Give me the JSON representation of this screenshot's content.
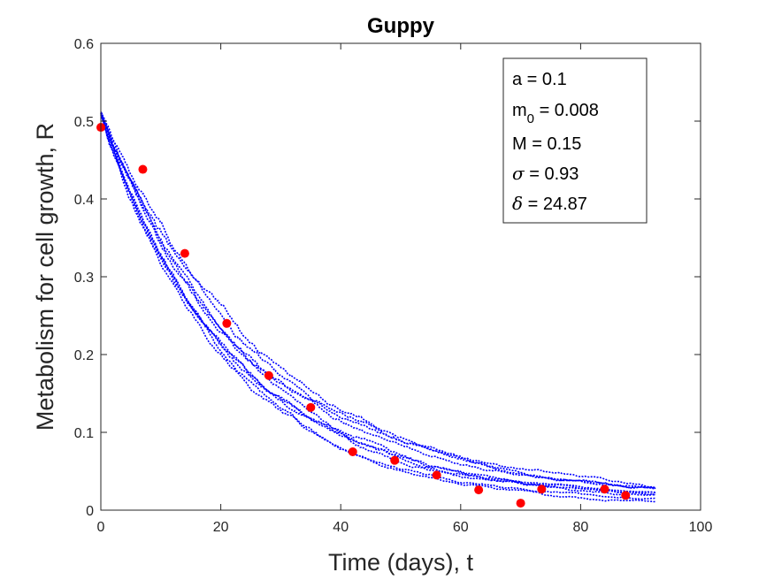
{
  "chart_data": {
    "type": "scatter",
    "title": "Guppy",
    "xlabel": "Time (days), t",
    "ylabel": "Metabolism for cell growth, R",
    "xlim": [
      0,
      100
    ],
    "ylim": [
      0,
      0.6
    ],
    "xticks": [
      0,
      20,
      40,
      60,
      80,
      100
    ],
    "yticks": [
      0,
      0.1,
      0.2,
      0.3,
      0.4,
      0.5,
      0.6
    ],
    "ytick_labels": [
      "0",
      "0.1",
      "0.2",
      "0.3",
      "0.4",
      "0.5",
      "0.6"
    ],
    "grid": false,
    "series": [
      {
        "kind": "observed points",
        "color": "#ff0000",
        "x": [
          0,
          7,
          14,
          21,
          28,
          35,
          42,
          49,
          56,
          63,
          70,
          73.5,
          84,
          87.5
        ],
        "y": [
          0.492,
          0.438,
          0.33,
          0.24,
          0.173,
          0.132,
          0.075,
          0.064,
          0.045,
          0.026,
          0.009,
          0.027,
          0.027,
          0.019
        ]
      },
      {
        "kind": "simulated sample paths",
        "color": "#0000ff",
        "paths": 10,
        "x_start": 0,
        "x_end": 92.5,
        "start_value": 0.51,
        "end_range": [
          0.008,
          0.02
        ]
      }
    ],
    "annotation_box": {
      "placement": "top-right",
      "lines": [
        {
          "label": "a",
          "symbol": false,
          "value": "= 0.1"
        },
        {
          "label": "m",
          "sub": "0",
          "symbol": false,
          "value": "= 0.008"
        },
        {
          "label": "M",
          "symbol": false,
          "value": "= 0.15"
        },
        {
          "label": "σ",
          "symbol": true,
          "value": "= 0.93"
        },
        {
          "label": "δ",
          "symbol": true,
          "value": "= 24.87"
        }
      ]
    }
  }
}
